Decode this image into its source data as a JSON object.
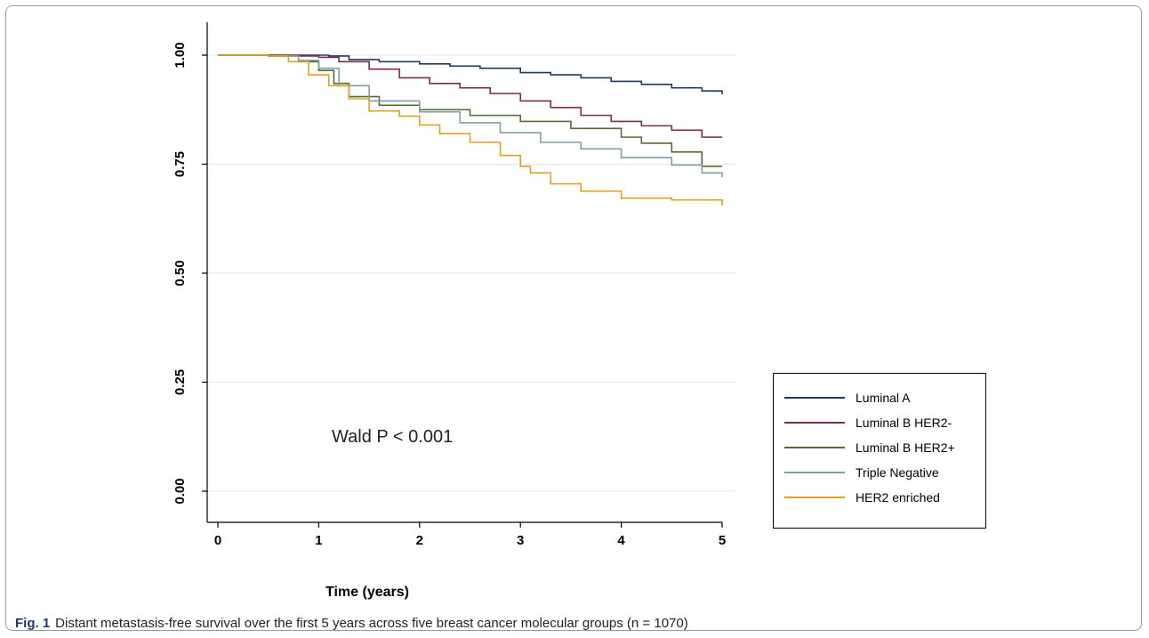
{
  "chart_data": {
    "type": "line",
    "step": true,
    "xlabel": "Time (years)",
    "ylabel": "",
    "xlim": [
      0,
      5
    ],
    "ylim": [
      0,
      1
    ],
    "xticks": [
      0,
      1,
      2,
      3,
      4,
      5
    ],
    "xtick_labels": [
      "0",
      "1",
      "2",
      "3",
      "4",
      "5"
    ],
    "yticks": [
      0,
      0.25,
      0.5,
      0.75,
      1.0
    ],
    "ytick_labels": [
      "0.00",
      "0.25",
      "0.50",
      "0.75",
      "1.00"
    ],
    "grid": "horizontal",
    "legend_position": "right",
    "annotation": "Wald P <  0.001",
    "series": [
      {
        "name": "Luminal A",
        "color": "#1f3a5c",
        "x": [
          0,
          0.5,
          1.1,
          1.3,
          1.6,
          2.0,
          2.3,
          2.6,
          3.0,
          3.3,
          3.6,
          3.9,
          4.2,
          4.5,
          4.8,
          5.0
        ],
        "y": [
          1.0,
          1.0,
          0.998,
          0.99,
          0.985,
          0.98,
          0.975,
          0.97,
          0.96,
          0.955,
          0.948,
          0.94,
          0.933,
          0.925,
          0.918,
          0.91
        ]
      },
      {
        "name": "Luminal B HER2-",
        "color": "#7a2d45",
        "x": [
          0,
          0.5,
          0.8,
          1.0,
          1.2,
          1.5,
          1.8,
          2.1,
          2.4,
          2.7,
          3.0,
          3.3,
          3.6,
          3.9,
          4.2,
          4.5,
          4.8,
          5.0
        ],
        "y": [
          1.0,
          1.0,
          0.998,
          0.995,
          0.985,
          0.968,
          0.948,
          0.935,
          0.925,
          0.912,
          0.895,
          0.88,
          0.862,
          0.848,
          0.838,
          0.828,
          0.812,
          0.812
        ]
      },
      {
        "name": "Luminal B HER2+",
        "color": "#556b2f",
        "x": [
          0,
          0.5,
          0.8,
          1.0,
          1.15,
          1.3,
          1.6,
          2.0,
          2.5,
          3.0,
          3.5,
          4.0,
          4.2,
          4.5,
          4.8,
          5.0
        ],
        "y": [
          1.0,
          0.998,
          0.985,
          0.965,
          0.935,
          0.905,
          0.885,
          0.875,
          0.862,
          0.848,
          0.832,
          0.812,
          0.798,
          0.778,
          0.745,
          0.745
        ]
      },
      {
        "name": "Triple Negative",
        "color": "#7fa0a0",
        "x": [
          0,
          0.5,
          0.8,
          1.0,
          1.2,
          1.5,
          2.0,
          2.4,
          2.8,
          3.2,
          3.6,
          4.0,
          4.5,
          4.8,
          5.0
        ],
        "y": [
          1.0,
          0.998,
          0.988,
          0.97,
          0.93,
          0.895,
          0.87,
          0.845,
          0.822,
          0.8,
          0.785,
          0.765,
          0.748,
          0.73,
          0.72
        ]
      },
      {
        "name": "HER2 enriched",
        "color": "#e0a020",
        "x": [
          0,
          0.5,
          0.7,
          0.9,
          1.1,
          1.3,
          1.5,
          1.8,
          2.0,
          2.2,
          2.5,
          2.8,
          3.0,
          3.1,
          3.3,
          3.6,
          4.0,
          4.5,
          5.0
        ],
        "y": [
          1.0,
          0.998,
          0.985,
          0.955,
          0.93,
          0.9,
          0.872,
          0.86,
          0.84,
          0.82,
          0.8,
          0.77,
          0.745,
          0.73,
          0.705,
          0.688,
          0.672,
          0.668,
          0.655
        ]
      }
    ]
  },
  "caption": {
    "label": "Fig. 1",
    "text": "Distant metastasis-free survival over the first 5 years across five breast cancer molecular groups (n = 1070)"
  }
}
